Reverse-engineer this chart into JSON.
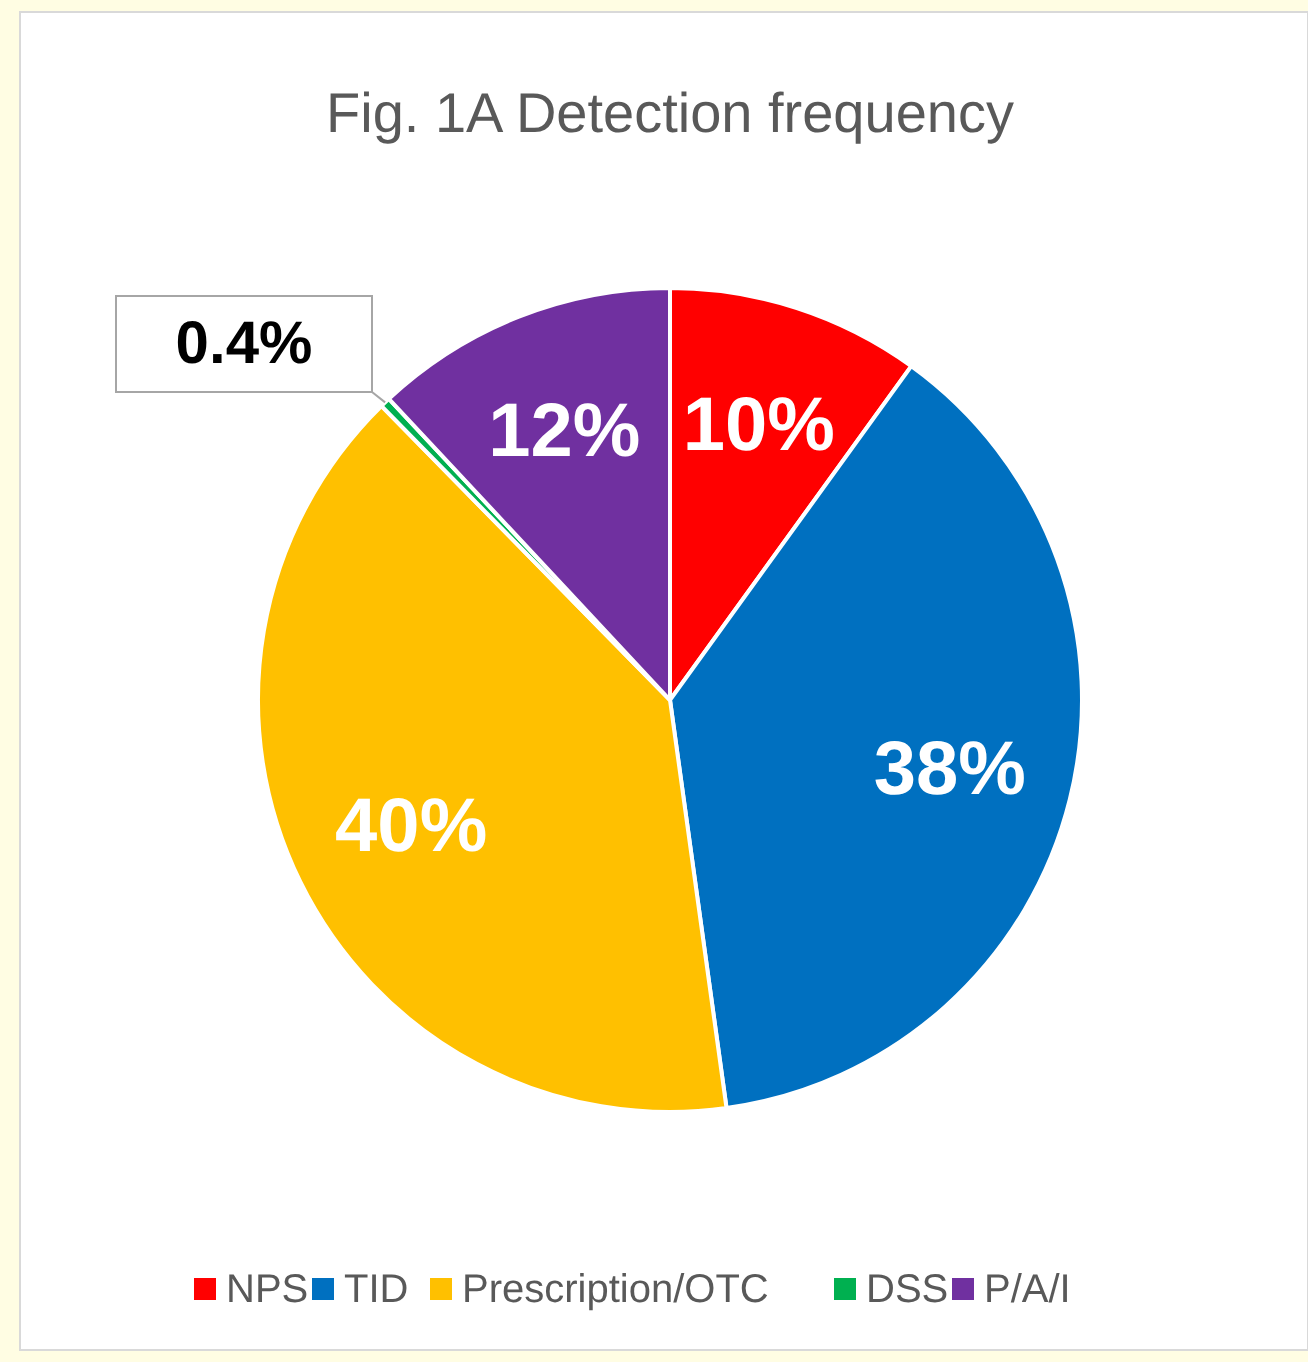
{
  "chart_data": {
    "type": "pie",
    "title": "Fig. 1A Detection frequency",
    "categories": [
      "NPS",
      "TID",
      "Prescription/OTC",
      "DSS",
      "P/A/I"
    ],
    "values": [
      10,
      38,
      40,
      0.4,
      12
    ],
    "colors": [
      "#ff0000",
      "#0070c0",
      "#ffc000",
      "#00b050",
      "#7030a0"
    ],
    "value_labels": [
      "10%",
      "38%",
      "40%",
      "0.4%",
      "12%"
    ],
    "legend": "bottom"
  }
}
